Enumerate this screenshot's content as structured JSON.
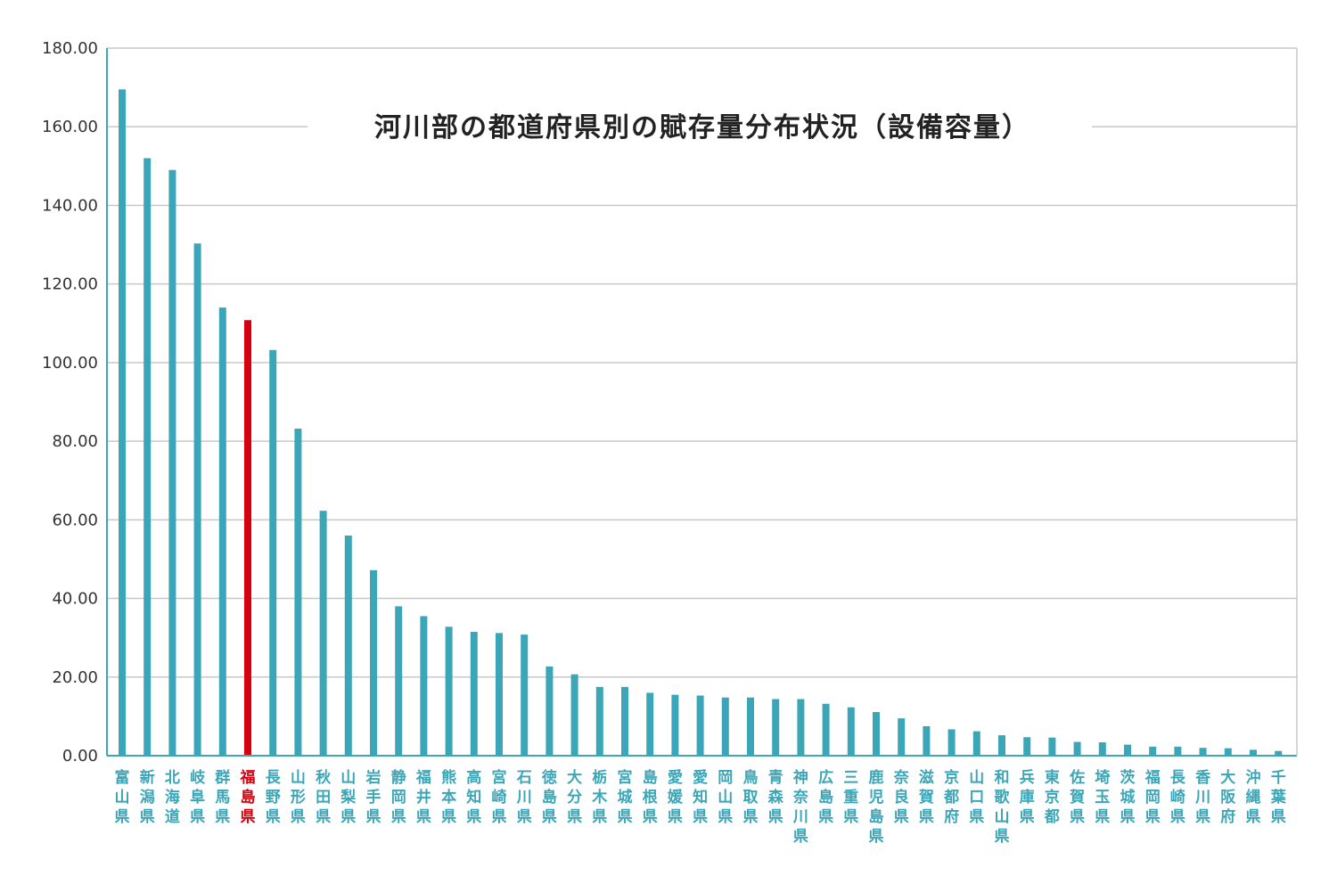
{
  "colors": {
    "bar": "#3ba6b7",
    "highlight": "#d7000f",
    "grid": "#c8c8c8",
    "axis": "#3ba6b7",
    "label": "#3ba6b7"
  },
  "chart_data": {
    "type": "bar",
    "title": "河川部の都道府県別の賦存量分布状況（設備容量）",
    "xlabel": "",
    "ylabel": "",
    "ylim": [
      0,
      180
    ],
    "yticks": [
      "0.00",
      "20.00",
      "40.00",
      "60.00",
      "80.00",
      "100.00",
      "120.00",
      "140.00",
      "160.00",
      "180.00"
    ],
    "grid": true,
    "highlight_category": "福島県",
    "categories": [
      "富山県",
      "新潟県",
      "北海道",
      "岐阜県",
      "群馬県",
      "福島県",
      "長野県",
      "山形県",
      "秋田県",
      "山梨県",
      "岩手県",
      "静岡県",
      "福井県",
      "熊本県",
      "高知県",
      "宮崎県",
      "石川県",
      "徳島県",
      "大分県",
      "栃木県",
      "宮城県",
      "島根県",
      "愛媛県",
      "愛知県",
      "岡山県",
      "鳥取県",
      "青森県",
      "神奈川県",
      "広島県",
      "三重県",
      "鹿児島県",
      "奈良県",
      "滋賀県",
      "京都府",
      "山口県",
      "和歌山県",
      "兵庫県",
      "東京都",
      "佐賀県",
      "埼玉県",
      "茨城県",
      "福岡県",
      "長崎県",
      "香川県",
      "大阪府",
      "沖縄県",
      "千葉県"
    ],
    "values": [
      169.5,
      152,
      149,
      130.3,
      114,
      110.8,
      103.2,
      83.2,
      62.3,
      56,
      47.2,
      38,
      35.5,
      32.8,
      31.5,
      31.2,
      30.8,
      22.7,
      20.7,
      17.5,
      17.5,
      16,
      15.5,
      15.3,
      14.8,
      14.8,
      14.4,
      14.4,
      13.2,
      12.3,
      11.1,
      9.5,
      7.5,
      6.7,
      6.2,
      5.2,
      4.7,
      4.6,
      3.5,
      3.4,
      2.8,
      2.3,
      2.3,
      2.0,
      1.9,
      1.5,
      1.2
    ]
  }
}
